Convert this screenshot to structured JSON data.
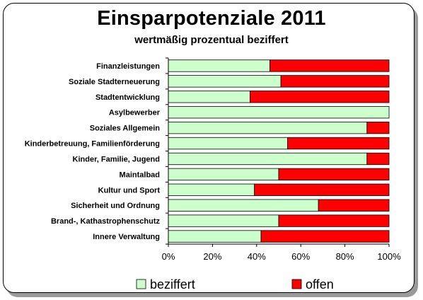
{
  "chart_data": {
    "type": "bar",
    "orientation": "horizontal",
    "stacked": true,
    "title": "Einsparpotenziale 2011",
    "subtitle": "wertmäßig prozentual beziffert",
    "categories": [
      "Finanzleistungen",
      "Soziale Stadterneuerung",
      "Stadtentwicklung",
      "Asylbewerber",
      "Soziales Allgemein",
      "Kinderbetreuung, Familienförderung",
      "Kinder, Familie, Jugend",
      "Maintalbad",
      "Kultur und Sport",
      "Sicherheit und Ordnung",
      "Brand-, Kathastrophenschutz",
      "Innere Verwaltung"
    ],
    "series": [
      {
        "name": "beziffert",
        "color": "#ccffcc",
        "values": [
          46,
          51,
          37,
          100,
          90,
          54,
          90,
          50,
          39,
          68,
          50,
          42
        ]
      },
      {
        "name": "offen",
        "color": "#ff0000",
        "values": [
          54,
          49,
          63,
          0,
          10,
          46,
          10,
          50,
          61,
          32,
          50,
          58
        ]
      }
    ],
    "xlim": [
      0,
      100
    ],
    "xticks": [
      "0%",
      "20%",
      "40%",
      "60%",
      "80%",
      "100%"
    ],
    "grid": false,
    "legend": "bottom"
  }
}
